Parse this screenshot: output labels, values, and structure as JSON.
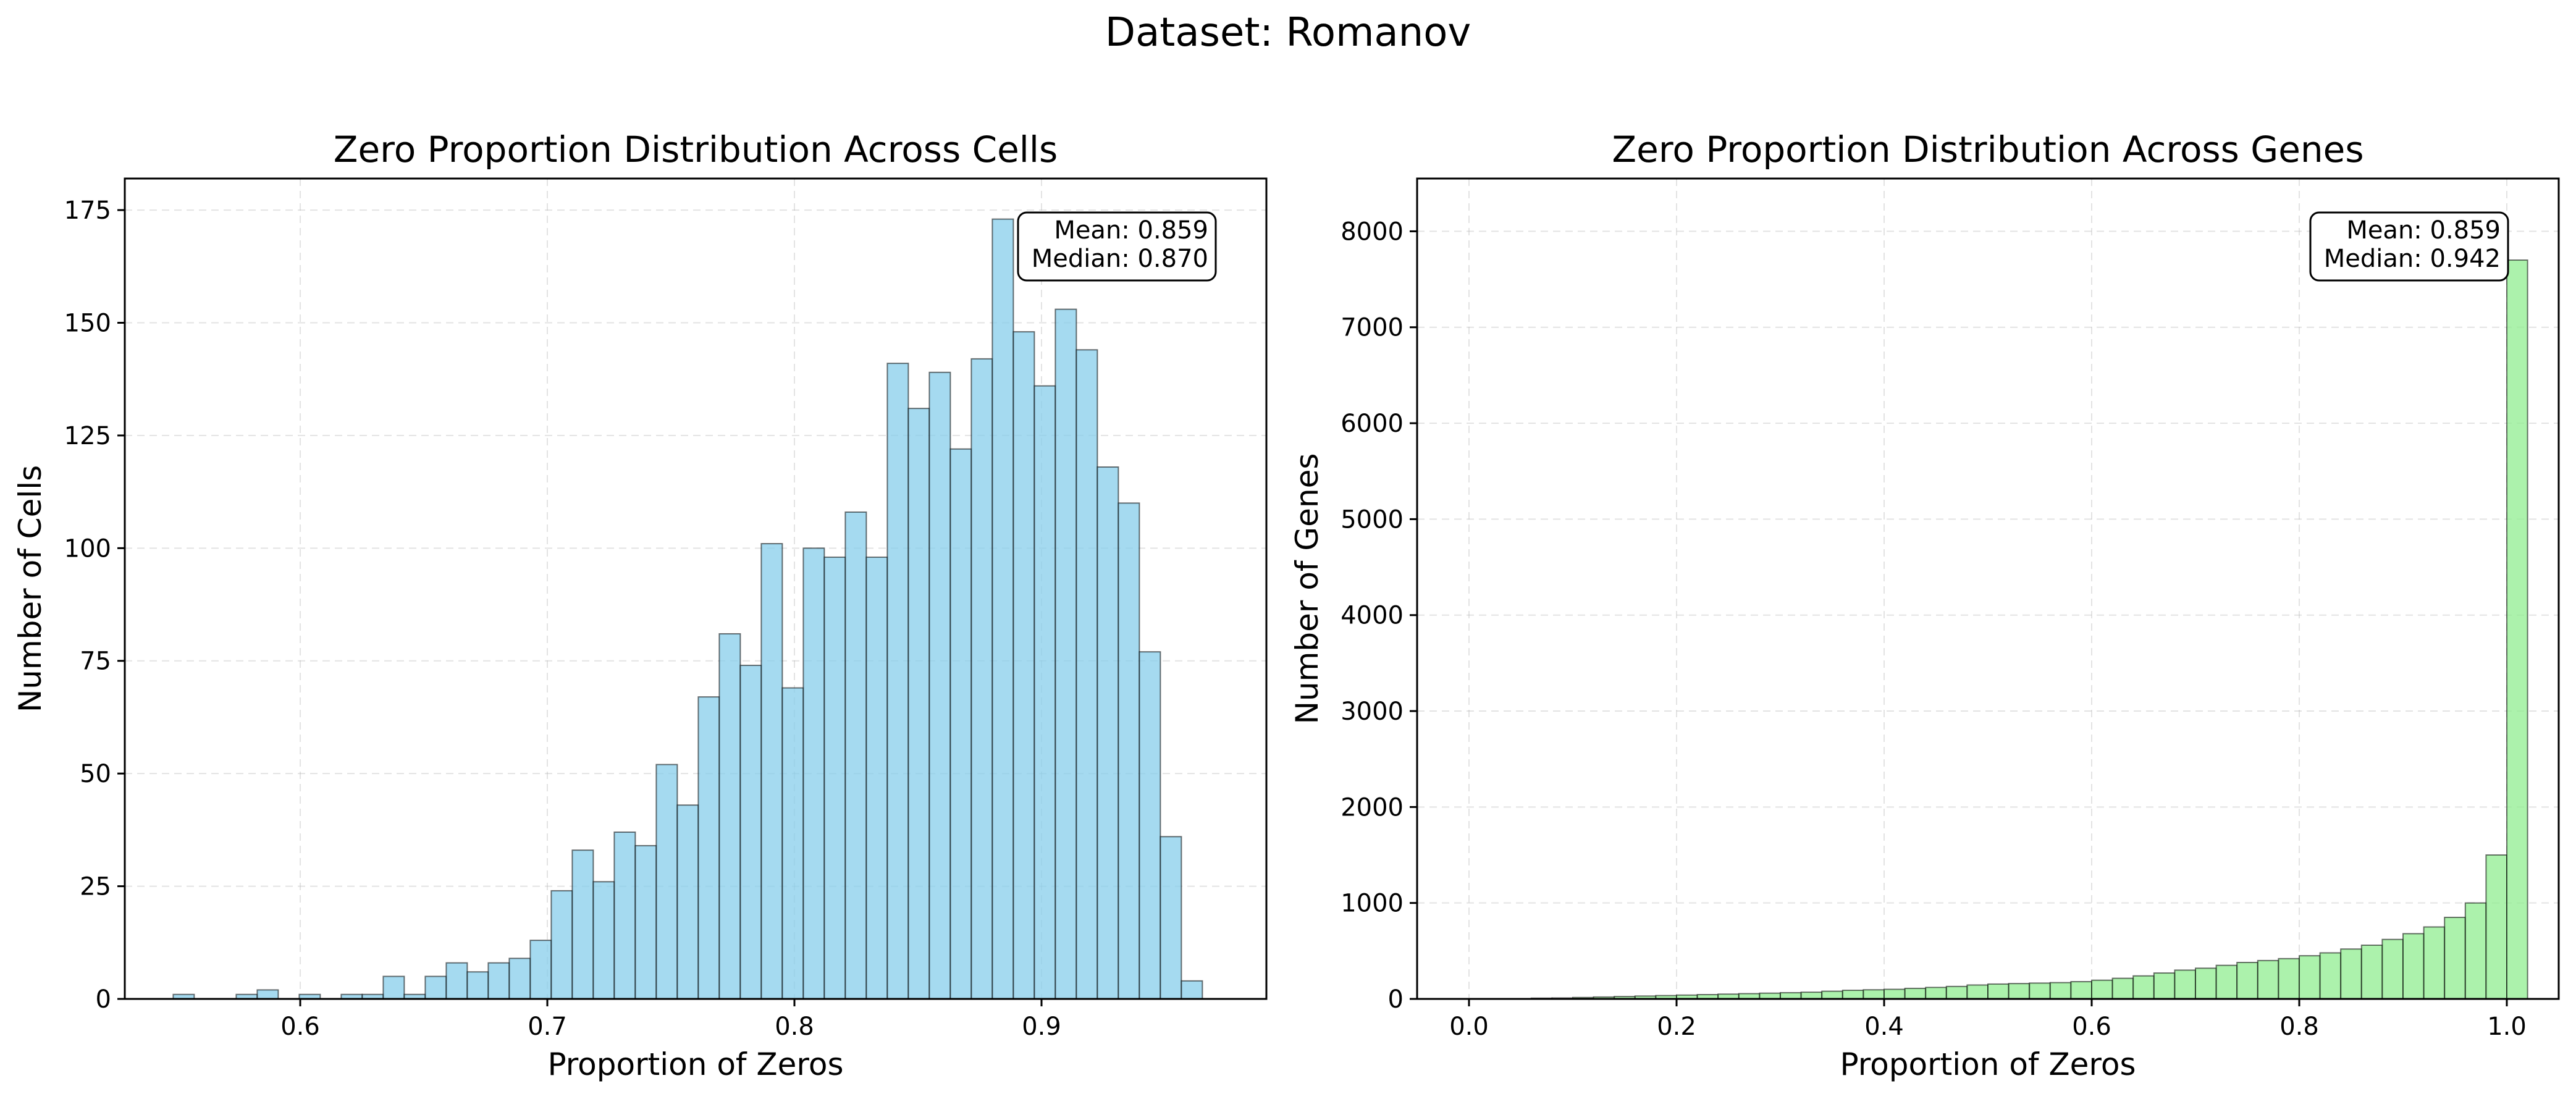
{
  "figure": {
    "suptitle": "Dataset: Romanov"
  },
  "chart_data": [
    {
      "type": "bar",
      "title": "Zero Proportion Distribution Across Cells",
      "xlabel": "Proportion of Zeros",
      "ylabel": "Number of Cells",
      "xlim": [
        0.529,
        0.991
      ],
      "ylim": [
        0,
        182
      ],
      "xticks": [
        0.6,
        0.7,
        0.8,
        0.9
      ],
      "xtick_labels": [
        "0.6",
        "0.7",
        "0.8",
        "0.9"
      ],
      "yticks": [
        0,
        25,
        50,
        75,
        100,
        125,
        150,
        175
      ],
      "ytick_labels": [
        "0",
        "25",
        "50",
        "75",
        "100",
        "125",
        "150",
        "175"
      ],
      "grid": true,
      "bar_color": "#87ceeb",
      "edge_color": "#000000",
      "bin_start": 0.5486,
      "bin_width": 0.0085,
      "values": [
        1,
        0,
        0,
        1,
        2,
        0,
        1,
        0,
        1,
        1,
        5,
        1,
        5,
        8,
        6,
        8,
        9,
        13,
        24,
        33,
        26,
        37,
        34,
        52,
        43,
        67,
        81,
        74,
        101,
        69,
        100,
        98,
        108,
        98,
        141,
        131,
        139,
        122,
        142,
        173,
        148,
        136,
        153,
        144,
        118,
        110,
        77,
        36,
        4
      ],
      "annotation": [
        "Mean: 0.859",
        "Median: 0.870"
      ]
    },
    {
      "type": "bar",
      "title": "Zero Proportion Distribution Across Genes",
      "xlabel": "Proportion of Zeros",
      "ylabel": "Number of Genes",
      "xlim": [
        -0.05,
        1.05
      ],
      "ylim": [
        0,
        8550
      ],
      "xticks": [
        0.0,
        0.2,
        0.4,
        0.6,
        0.8,
        1.0
      ],
      "xtick_labels": [
        "0.0",
        "0.2",
        "0.4",
        "0.6",
        "0.8",
        "1.0"
      ],
      "yticks": [
        0,
        1000,
        2000,
        3000,
        4000,
        5000,
        6000,
        7000,
        8000
      ],
      "ytick_labels": [
        "0",
        "1000",
        "2000",
        "3000",
        "4000",
        "5000",
        "6000",
        "7000",
        "8000"
      ],
      "grid": true,
      "bar_color": "#90ee90",
      "edge_color": "#000000",
      "bin_start": 0.0,
      "bin_width": 0.02,
      "values": [
        3,
        3,
        3,
        8,
        10,
        15,
        20,
        25,
        30,
        35,
        40,
        45,
        50,
        55,
        60,
        65,
        70,
        80,
        90,
        95,
        100,
        110,
        120,
        130,
        145,
        155,
        160,
        165,
        170,
        180,
        195,
        215,
        240,
        270,
        300,
        320,
        350,
        380,
        400,
        420,
        450,
        480,
        520,
        560,
        620,
        680,
        750,
        850,
        1000,
        1500,
        7700
      ],
      "annotation": [
        "Mean: 0.859",
        "Median: 0.942"
      ]
    }
  ]
}
